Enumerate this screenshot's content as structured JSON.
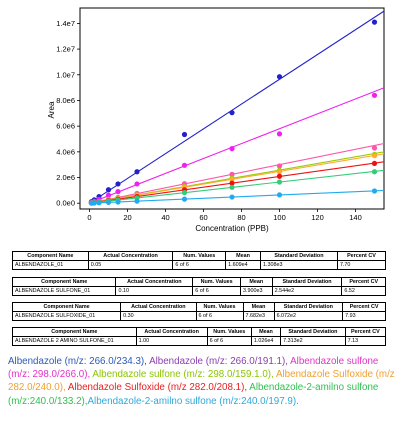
{
  "chart_data": {
    "type": "scatter",
    "xlabel": "Concentration (PPB)",
    "ylabel": "Area",
    "x_ticks": [
      0,
      20,
      40,
      60,
      80,
      100,
      120,
      140
    ],
    "y_ticks": [
      "0.0e0",
      "2.0e6",
      "4.0e6",
      "6.0e6",
      "8.0e6",
      "1.0e7",
      "1.2e7",
      "1.4e7"
    ],
    "y_tick_values": [
      0,
      2000000,
      4000000,
      6000000,
      8000000,
      10000000,
      12000000,
      14000000
    ],
    "xlim": [
      -5,
      155
    ],
    "ylim": [
      -450000,
      15200000
    ],
    "grid": false,
    "series": [
      {
        "color": "#2222cc",
        "slope": 96500,
        "x": [
          1,
          2.5,
          5,
          10,
          15,
          25,
          50,
          75,
          100,
          150
        ],
        "y": [
          120000,
          260000,
          520000,
          1050000,
          1500000,
          2450000,
          5350000,
          7050000,
          9850000,
          14100000
        ]
      },
      {
        "color": "#ee22ee",
        "slope": 58000,
        "x": [
          1,
          2.5,
          5,
          10,
          15,
          25,
          50,
          75,
          100,
          150
        ],
        "y": [
          60000,
          150000,
          300000,
          620000,
          900000,
          1500000,
          2950000,
          4250000,
          5400000,
          8400000
        ]
      },
      {
        "color": "#ff55aa",
        "slope": 30000,
        "x": [
          1,
          2.5,
          5,
          10,
          15,
          25,
          50,
          75,
          100,
          150
        ],
        "y": [
          30000,
          75000,
          150000,
          300000,
          450000,
          760000,
          1520000,
          2250000,
          2900000,
          4300000
        ]
      },
      {
        "color": "#99cc00",
        "slope": 25800,
        "x": [
          1,
          2.5,
          5,
          10,
          15,
          25,
          50,
          75,
          100,
          150
        ],
        "y": [
          26000,
          65000,
          130000,
          260000,
          390000,
          650000,
          1300000,
          1950000,
          2550000,
          3800000
        ]
      },
      {
        "color": "#ffaa33",
        "slope": 24800,
        "x": [
          1,
          2.5,
          5,
          10,
          15,
          25,
          50,
          75,
          100,
          150
        ],
        "y": [
          25000,
          62000,
          124000,
          250000,
          372000,
          620000,
          1240000,
          1860000,
          2450000,
          3700000
        ]
      },
      {
        "color": "#ee1111",
        "slope": 20800,
        "x": [
          1,
          2.5,
          5,
          10,
          15,
          25,
          50,
          75,
          100,
          150
        ],
        "y": [
          21000,
          52000,
          104000,
          208000,
          312000,
          520000,
          1040000,
          1560000,
          2100000,
          3100000
        ]
      },
      {
        "color": "#33cc77",
        "slope": 16500,
        "x": [
          1,
          2.5,
          5,
          10,
          15,
          25,
          50,
          75,
          100,
          150
        ],
        "y": [
          17000,
          41000,
          83000,
          165000,
          248000,
          412000,
          825000,
          1240000,
          1650000,
          2450000
        ]
      },
      {
        "color": "#22aaee",
        "slope": 6400,
        "x": [
          1,
          2.5,
          5,
          10,
          15,
          25,
          50,
          75,
          100,
          150
        ],
        "y": [
          6400,
          16000,
          32000,
          64000,
          96000,
          160000,
          320000,
          480000,
          650000,
          950000
        ]
      }
    ]
  },
  "tables": [
    {
      "headers": [
        "Component Name",
        "Actual Concentration",
        "Num. Values",
        "Mean",
        "Standard Deviation",
        "Percent CV"
      ],
      "row": [
        "ALBENDAZOLE_01",
        "0.05",
        "6 of 6",
        "1.609e4",
        "1.308e3",
        "7.70"
      ]
    },
    {
      "headers": [
        "Component Name",
        "Actual Concentration",
        "Num. Values",
        "Mean",
        "Standard Deviation",
        "Percent CV"
      ],
      "row": [
        "ALBENDAZOLE SULFONE_01",
        "0.10",
        "6 of 6",
        "3.900e3",
        "2.544e2",
        "6.52"
      ]
    },
    {
      "headers": [
        "Component Name",
        "Actual Concentration",
        "Num. Values",
        "Mean",
        "Standard Deviation",
        "Percent CV"
      ],
      "row": [
        "ALBENDAZOLE SULFOXIDE_01",
        "0.30",
        "6 of 6",
        "7.682e3",
        "6.072e2",
        "7.93"
      ]
    },
    {
      "headers": [
        "Component Name",
        "Actual Concentration",
        "Num. Values",
        "Mean",
        "Standard Deviation",
        "Percent CV"
      ],
      "row": [
        "ALBENDAZOLE 2 AMINO SULFONE_01",
        "1.00",
        "6 of 6",
        "1.026e4",
        "7.313e2",
        "7.13"
      ]
    }
  ],
  "legend": [
    {
      "text": "Albendazole (m/z: 266.0/234.3), ",
      "color": "#2a5ab8"
    },
    {
      "text": "Albendazole (m/z: 266.0/191.1), ",
      "color": "#8b3fb0"
    },
    {
      "text": "Albendazole sulfone (m/z: 298.0/266.0), ",
      "color": "#e033c8"
    },
    {
      "text": "Albendazole sulfone (m/z: 298.0/159.1.0), ",
      "color": "#8cc400"
    },
    {
      "text": "Albendazole Sulfoxide (m/z 282.0/240.0), ",
      "color": "#f0a030"
    },
    {
      "text": "Albendazole Sulfoxide (m/z 282.0/208.1), ",
      "color": "#e82020"
    },
    {
      "text": "Albendazole-2-amilno sulfone (m/z:240.0/133.2),",
      "color": "#30c050"
    },
    {
      "text": "Albendazole-2-amilno sulfone (m/z:240.0/197.9).",
      "color": "#2fa8d8"
    }
  ]
}
